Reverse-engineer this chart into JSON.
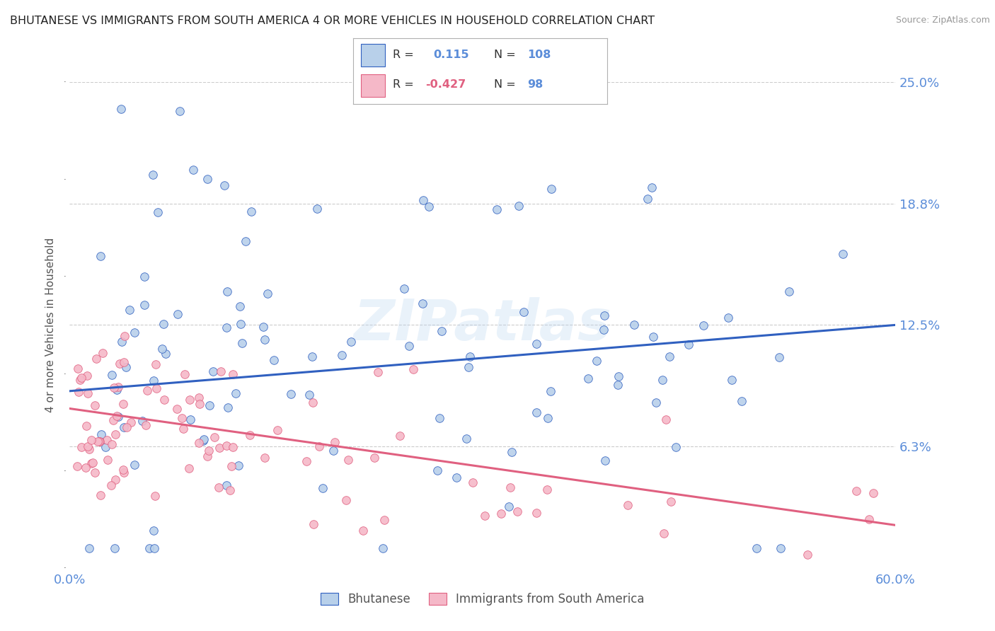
{
  "title": "BHUTANESE VS IMMIGRANTS FROM SOUTH AMERICA 4 OR MORE VEHICLES IN HOUSEHOLD CORRELATION CHART",
  "source": "Source: ZipAtlas.com",
  "ylabel": "4 or more Vehicles in Household",
  "x_min": 0.0,
  "x_max": 0.6,
  "y_min": 0.0,
  "y_max": 0.25,
  "y_ticks": [
    0.0,
    0.0625,
    0.125,
    0.1875,
    0.25
  ],
  "y_tick_labels": [
    "",
    "6.3%",
    "12.5%",
    "18.8%",
    "25.0%"
  ],
  "x_tick_labels": [
    "0.0%",
    "60.0%"
  ],
  "blue_R": 0.115,
  "blue_N": 108,
  "pink_R": -0.427,
  "pink_N": 98,
  "blue_color": "#b8d0ea",
  "pink_color": "#f5b8c8",
  "blue_line_color": "#3060c0",
  "pink_line_color": "#e06080",
  "background_color": "#ffffff",
  "grid_color": "#cccccc",
  "title_color": "#222222",
  "axis_label_color": "#5b8dd9",
  "watermark": "ZIPatlas",
  "blue_trend_x0": 0.0,
  "blue_trend_y0": 0.091,
  "blue_trend_x1": 0.6,
  "blue_trend_y1": 0.125,
  "pink_trend_x0": 0.0,
  "pink_trend_y0": 0.082,
  "pink_trend_x1": 0.6,
  "pink_trend_y1": 0.022
}
